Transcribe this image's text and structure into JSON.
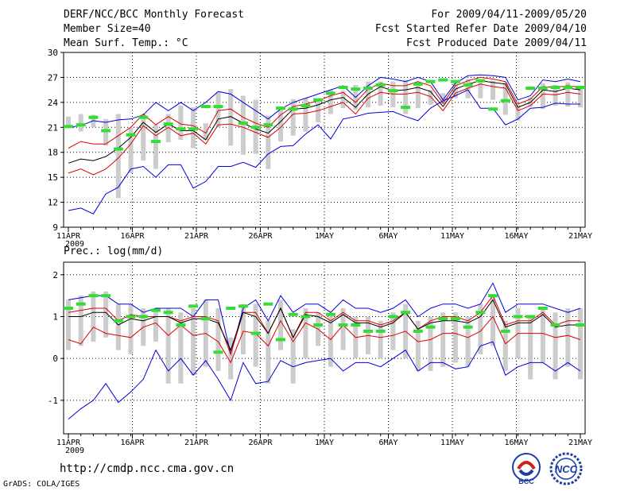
{
  "header": {
    "title": "DERF/NCC/BCC Monthly Forecast",
    "member_size": "Member Size=40",
    "variable": "Mean Surf. Temp.: °C",
    "period": "For 2009/04/11-2009/05/20",
    "fcst_started": "Fcst Started Refer Date 2009/04/10",
    "fcst_produced": "Fcst Produced Date 2009/04/11"
  },
  "footer": {
    "url": "http://cmdp.ncc.cma.gov.cn",
    "grads": "GrADS: COLA/IGES",
    "logo_bcc_text": "BCC",
    "logo_ncc_text": "NCC"
  },
  "colors": {
    "ensemble_bar": "#cccccc",
    "observed_marker": "#33dd33",
    "mean_line": "#000000",
    "inner_spread": "#dd0000",
    "outer_spread": "#0000dd"
  },
  "chart_data": [
    {
      "type": "line",
      "title": "Mean Surf. Temp.: °C",
      "ylim": [
        9,
        30
      ],
      "yticks": [
        9,
        12,
        15,
        18,
        21,
        24,
        27,
        30
      ],
      "xtick_labels": [
        "11APR",
        "16APR",
        "21APR",
        "26APR",
        "1MAY",
        "6MAY",
        "11MAY",
        "16MAY",
        "21MAY"
      ],
      "year_label": "2009",
      "days": 40,
      "series": [
        {
          "name": "max",
          "color": "blue",
          "values": [
            21,
            21.2,
            21.8,
            21.6,
            21.9,
            22,
            22.5,
            24,
            23,
            24,
            23,
            24,
            25.3,
            25,
            24,
            23,
            22,
            23.2,
            24,
            24.5,
            25,
            25.5,
            26,
            24.6,
            26,
            27,
            26.8,
            26.5,
            27,
            26.5,
            24.3,
            26.3,
            27.2,
            27.3,
            27.2,
            27,
            24.3,
            24.8,
            26.7,
            26.5,
            26.8,
            26.5
          ]
        },
        {
          "name": "upper",
          "color": "red",
          "values": [
            18.5,
            19.3,
            19,
            19,
            20,
            21,
            22.6,
            21.3,
            22.3,
            21.4,
            21.2,
            20.3,
            23,
            23.2,
            22.2,
            21.5,
            21,
            22.5,
            23.5,
            23.8,
            24.2,
            24.8,
            25.2,
            24,
            25.6,
            26.3,
            26,
            26,
            26.5,
            26,
            23.9,
            26,
            26.6,
            27,
            26.8,
            26.5,
            23.8,
            24.4,
            25.9,
            25.8,
            26,
            25.8
          ]
        },
        {
          "name": "mean",
          "color": "black",
          "values": [
            16.7,
            17.2,
            17,
            17.5,
            18.5,
            19.8,
            21.6,
            20.4,
            21.4,
            20.6,
            20.6,
            19.5,
            22,
            22.3,
            21.5,
            20.8,
            20.3,
            21.7,
            23.2,
            23.3,
            23.7,
            24.3,
            24.6,
            23.4,
            25,
            25.9,
            25.4,
            25.5,
            25.8,
            25.3,
            23.5,
            25.6,
            26.2,
            26.6,
            26.4,
            26.2,
            23.4,
            24,
            25.5,
            25.3,
            25.7,
            25.5
          ]
        },
        {
          "name": "lower",
          "color": "red",
          "values": [
            15.5,
            16,
            15.3,
            16,
            17.3,
            19,
            21.2,
            20,
            21,
            20,
            20.3,
            19,
            21.3,
            21.4,
            21,
            20.4,
            19.8,
            21,
            22.6,
            22.7,
            23,
            23.5,
            24,
            22.6,
            24.5,
            25.2,
            25,
            25,
            25.2,
            24.7,
            23,
            25.1,
            25.7,
            26.2,
            25.9,
            25.7,
            23,
            23.6,
            25,
            24.9,
            25.2,
            25
          ]
        },
        {
          "name": "min",
          "color": "blue",
          "values": [
            11,
            11.3,
            10.6,
            13,
            13.8,
            16,
            16.3,
            15,
            16.5,
            16.5,
            13.7,
            14.5,
            16.3,
            16.3,
            16.8,
            16.2,
            17.8,
            18.7,
            18.8,
            20.2,
            21.3,
            19.6,
            22,
            22.3,
            22.7,
            22.8,
            22.9,
            22.3,
            21.8,
            23.3,
            24.2,
            24.8,
            25.5,
            23.3,
            23.3,
            21.3,
            22,
            23.3,
            23.4,
            23.9,
            23.8,
            23.8
          ]
        }
      ],
      "bars": [
        [
          21.0,
          22.3
        ],
        [
          20.5,
          22.6
        ],
        [
          21.0,
          22.5
        ],
        [
          18.8,
          22.0
        ],
        [
          12.5,
          22.6
        ],
        [
          15.5,
          21.0
        ],
        [
          17.0,
          22.0
        ],
        [
          16.0,
          21.3
        ],
        [
          19.2,
          22.6
        ],
        [
          19.5,
          23.6
        ],
        [
          18.5,
          23.4
        ],
        [
          19.5,
          21.5
        ],
        [
          21.0,
          25.2
        ],
        [
          18.8,
          25.6
        ],
        [
          17.7,
          24.8
        ],
        [
          17.8,
          24.3
        ],
        [
          16.0,
          22.4
        ],
        [
          19.3,
          23.5
        ],
        [
          20.0,
          24.4
        ],
        [
          20.5,
          24.5
        ],
        [
          21.6,
          24.3
        ],
        [
          22.6,
          25.5
        ],
        [
          23.3,
          25.4
        ],
        [
          23.1,
          26.1
        ],
        [
          23.4,
          26.5
        ],
        [
          23.6,
          26.5
        ],
        [
          23.4,
          26.5
        ],
        [
          22.6,
          26.7
        ],
        [
          23.3,
          26.0
        ],
        [
          23.7,
          25.5
        ],
        [
          23.8,
          25.1
        ],
        [
          24.5,
          26.6
        ],
        [
          24.5,
          26.8
        ],
        [
          24.5,
          26.7
        ],
        [
          24.3,
          26.6
        ],
        [
          22.5,
          26.4
        ],
        [
          21.8,
          23.7
        ],
        [
          23.5,
          24.6
        ],
        [
          23.2,
          26.3
        ],
        [
          23.6,
          26.1
        ],
        [
          23.5,
          26.4
        ],
        [
          23.4,
          26.0
        ]
      ],
      "observed": [
        21.1,
        21.3,
        22.2,
        20.6,
        18.4,
        20.1,
        22.2,
        19.3,
        21.4,
        20.8,
        20.8,
        23.5,
        23.5,
        null,
        21.5,
        21.0,
        21.3,
        23.3,
        23.2,
        23.6,
        24.3,
        25.1,
        25.8,
        25.6,
        25.7,
        26.1,
        25.4,
        23.4,
        26.2,
        26.5,
        26.7,
        26.5,
        26.1,
        26.6,
        23.2,
        24.2,
        null,
        25.7,
        25.7,
        25.8,
        25.8,
        25.8
      ]
    },
    {
      "type": "line",
      "title": "Prec.: log(mm/d)",
      "ylim": [
        -1.8,
        2.3
      ],
      "yticks": [
        -1,
        0,
        1,
        2
      ],
      "xtick_labels": [
        "11APR",
        "16APR",
        "21APR",
        "26APR",
        "1MAY",
        "6MAY",
        "11MAY",
        "16MAY",
        "21MAY"
      ],
      "year_label": "2009",
      "days": 40,
      "series": [
        {
          "name": "max",
          "color": "blue",
          "values": [
            1.4,
            1.45,
            1.5,
            1.5,
            1.3,
            1.3,
            1.1,
            1.2,
            1.2,
            1.2,
            1.0,
            1.4,
            1.4,
            0.1,
            1.2,
            1.4,
            0.9,
            1.5,
            1.1,
            1.3,
            1.3,
            1.1,
            1.4,
            1.2,
            1.2,
            1.1,
            1.2,
            1.4,
            1.0,
            1.2,
            1.3,
            1.3,
            1.2,
            1.3,
            1.8,
            1.1,
            1.3,
            1.3,
            1.3,
            1.2,
            1.1,
            1.2
          ]
        },
        {
          "name": "upper",
          "color": "red",
          "values": [
            1.1,
            1.15,
            1.2,
            1.2,
            0.9,
            1.05,
            1.0,
            1.0,
            1.0,
            0.9,
            1.0,
            1.0,
            0.9,
            0.1,
            1.1,
            1.1,
            0.6,
            1.2,
            0.5,
            1.1,
            1.1,
            0.9,
            1.1,
            0.9,
            0.9,
            0.8,
            0.9,
            1.1,
            0.7,
            0.9,
            1.0,
            1.0,
            0.9,
            1.1,
            1.5,
            0.8,
            0.9,
            0.9,
            1.1,
            0.8,
            0.9,
            0.9
          ]
        },
        {
          "name": "mean",
          "color": "black",
          "values": [
            1.0,
            1.0,
            1.1,
            1.1,
            0.8,
            0.95,
            0.9,
            1.0,
            1.0,
            0.85,
            0.95,
            0.95,
            0.85,
            0.2,
            1.1,
            1.0,
            0.6,
            1.2,
            0.5,
            1.05,
            1.0,
            0.85,
            1.05,
            0.85,
            0.85,
            0.75,
            0.85,
            1.1,
            0.7,
            0.85,
            0.9,
            0.9,
            0.85,
            1.0,
            1.4,
            0.75,
            0.85,
            0.85,
            1.05,
            0.75,
            0.8,
            0.8
          ]
        },
        {
          "name": "lower",
          "color": "red",
          "values": [
            0.45,
            0.35,
            0.75,
            0.6,
            0.55,
            0.5,
            0.75,
            0.85,
            0.55,
            0.8,
            0.55,
            0.6,
            0.4,
            -0.1,
            0.65,
            0.6,
            0.3,
            0.9,
            0.4,
            0.85,
            0.7,
            0.45,
            0.8,
            0.5,
            0.55,
            0.5,
            0.55,
            0.65,
            0.4,
            0.45,
            0.6,
            0.6,
            0.5,
            0.65,
            1.0,
            0.35,
            0.6,
            0.6,
            0.6,
            0.5,
            0.55,
            0.45
          ]
        },
        {
          "name": "min",
          "color": "blue",
          "values": [
            -1.45,
            -1.2,
            -1.0,
            -0.6,
            -1.05,
            -0.8,
            -0.5,
            0.2,
            -0.3,
            0.0,
            -0.4,
            -0.05,
            -0.5,
            -1.0,
            -0.1,
            -0.6,
            -0.55,
            -0.05,
            -0.2,
            -0.1,
            -0.05,
            0.0,
            -0.3,
            -0.1,
            -0.1,
            -0.2,
            0.0,
            0.2,
            -0.3,
            -0.1,
            -0.1,
            -0.25,
            -0.2,
            0.3,
            0.4,
            -0.4,
            -0.2,
            -0.1,
            -0.1,
            -0.3,
            -0.1,
            -0.3
          ]
        }
      ],
      "bars": [
        [
          0.2,
          1.4
        ],
        [
          0.3,
          1.5
        ],
        [
          0.4,
          1.6
        ],
        [
          0.5,
          1.6
        ],
        [
          0.2,
          1.3
        ],
        [
          0.1,
          1.3
        ],
        [
          0.3,
          1.2
        ],
        [
          0.4,
          1.2
        ],
        [
          -0.6,
          1.2
        ],
        [
          -0.6,
          1.1
        ],
        [
          -0.4,
          1.2
        ],
        [
          -0.2,
          1.4
        ],
        [
          -0.3,
          1.2
        ],
        [
          -0.5,
          0.5
        ],
        [
          0.1,
          1.3
        ],
        [
          -0.2,
          1.3
        ],
        [
          -0.6,
          0.9
        ],
        [
          0.2,
          1.4
        ],
        [
          -0.6,
          0.7
        ],
        [
          0.0,
          1.2
        ],
        [
          0.3,
          1.1
        ],
        [
          -0.2,
          1.0
        ],
        [
          0.2,
          1.2
        ],
        [
          0.0,
          1.0
        ],
        [
          0.1,
          1.0
        ],
        [
          0.0,
          0.9
        ],
        [
          0.2,
          1.1
        ],
        [
          0.0,
          1.3
        ],
        [
          -0.3,
          0.9
        ],
        [
          -0.3,
          1.0
        ],
        [
          -0.2,
          1.1
        ],
        [
          -0.1,
          1.1
        ],
        [
          -0.2,
          1.0
        ],
        [
          0.1,
          1.3
        ],
        [
          0.3,
          1.5
        ],
        [
          -0.3,
          0.9
        ],
        [
          0.0,
          1.2
        ],
        [
          -0.5,
          1.0
        ],
        [
          -0.1,
          1.2
        ],
        [
          -0.5,
          1.1
        ],
        [
          -0.2,
          1.2
        ],
        [
          -0.5,
          1.2
        ]
      ],
      "observed": [
        1.2,
        1.3,
        1.5,
        1.5,
        0.9,
        1.0,
        1.0,
        1.15,
        1.1,
        0.8,
        1.25,
        0.95,
        0.15,
        1.2,
        1.25,
        0.6,
        1.3,
        0.45,
        1.05,
        1.0,
        0.8,
        1.05,
        0.8,
        0.8,
        0.65,
        0.65,
        1.0,
        1.1,
        0.65,
        0.75,
        0.95,
        0.95,
        0.75,
        1.1,
        1.5,
        0.65,
        1.0,
        1.0,
        1.2,
        0.8,
        null,
        0.8
      ]
    }
  ]
}
